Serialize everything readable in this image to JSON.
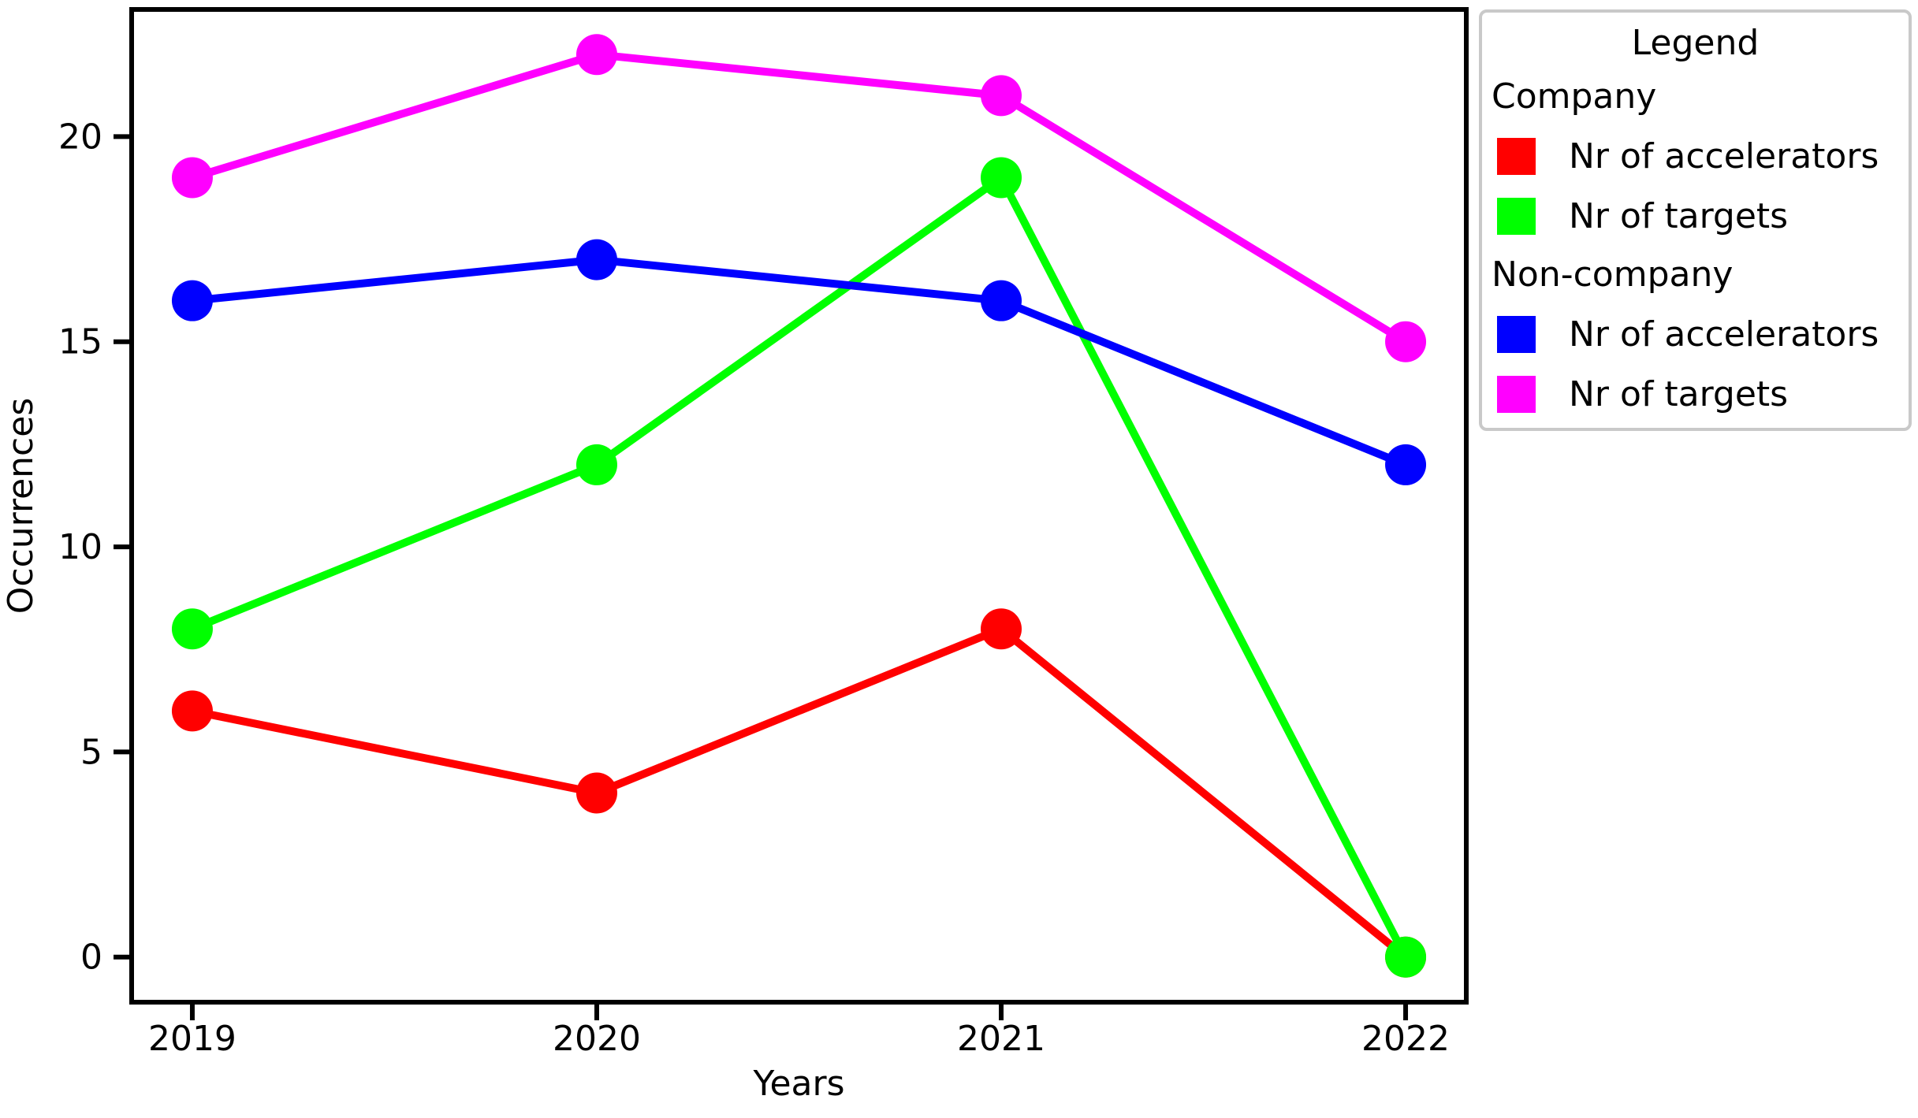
{
  "legend": {
    "title": "Legend",
    "groups": [
      {
        "label": "Company",
        "items": [
          {
            "label": "Nr of accelerators",
            "color": "#ff0000"
          },
          {
            "label": "Nr of targets",
            "color": "#00ff00"
          }
        ]
      },
      {
        "label": "Non-company",
        "items": [
          {
            "label": "Nr of accelerators",
            "color": "#0000ff"
          },
          {
            "label": "Nr of targets",
            "color": "#ff00ff"
          }
        ]
      }
    ]
  },
  "chart_data": {
    "type": "line",
    "xlabel": "Years",
    "ylabel": "Occurrences",
    "categories": [
      "2019",
      "2020",
      "2021",
      "2022"
    ],
    "series": [
      {
        "group": "Company",
        "name": "Nr of accelerators",
        "color": "#ff0000",
        "values": [
          6,
          4,
          8,
          0
        ]
      },
      {
        "group": "Company",
        "name": "Nr of targets",
        "color": "#00ff00",
        "values": [
          8,
          12,
          19,
          0
        ]
      },
      {
        "group": "Non-company",
        "name": "Nr of accelerators",
        "color": "#0000ff",
        "values": [
          16,
          17,
          16,
          12
        ]
      },
      {
        "group": "Non-company",
        "name": "Nr of targets",
        "color": "#ff00ff",
        "values": [
          19,
          22,
          21,
          15
        ]
      }
    ],
    "yticks": [
      0,
      5,
      10,
      15,
      20
    ],
    "ylim": [
      -1.1,
      23.1
    ],
    "xlim": [
      -0.15,
      3.15
    ],
    "grid": false,
    "marker": "circle",
    "legend_position": "upper right",
    "axis_color": "#000000",
    "text_color": "#000000",
    "background": "#ffffff"
  }
}
